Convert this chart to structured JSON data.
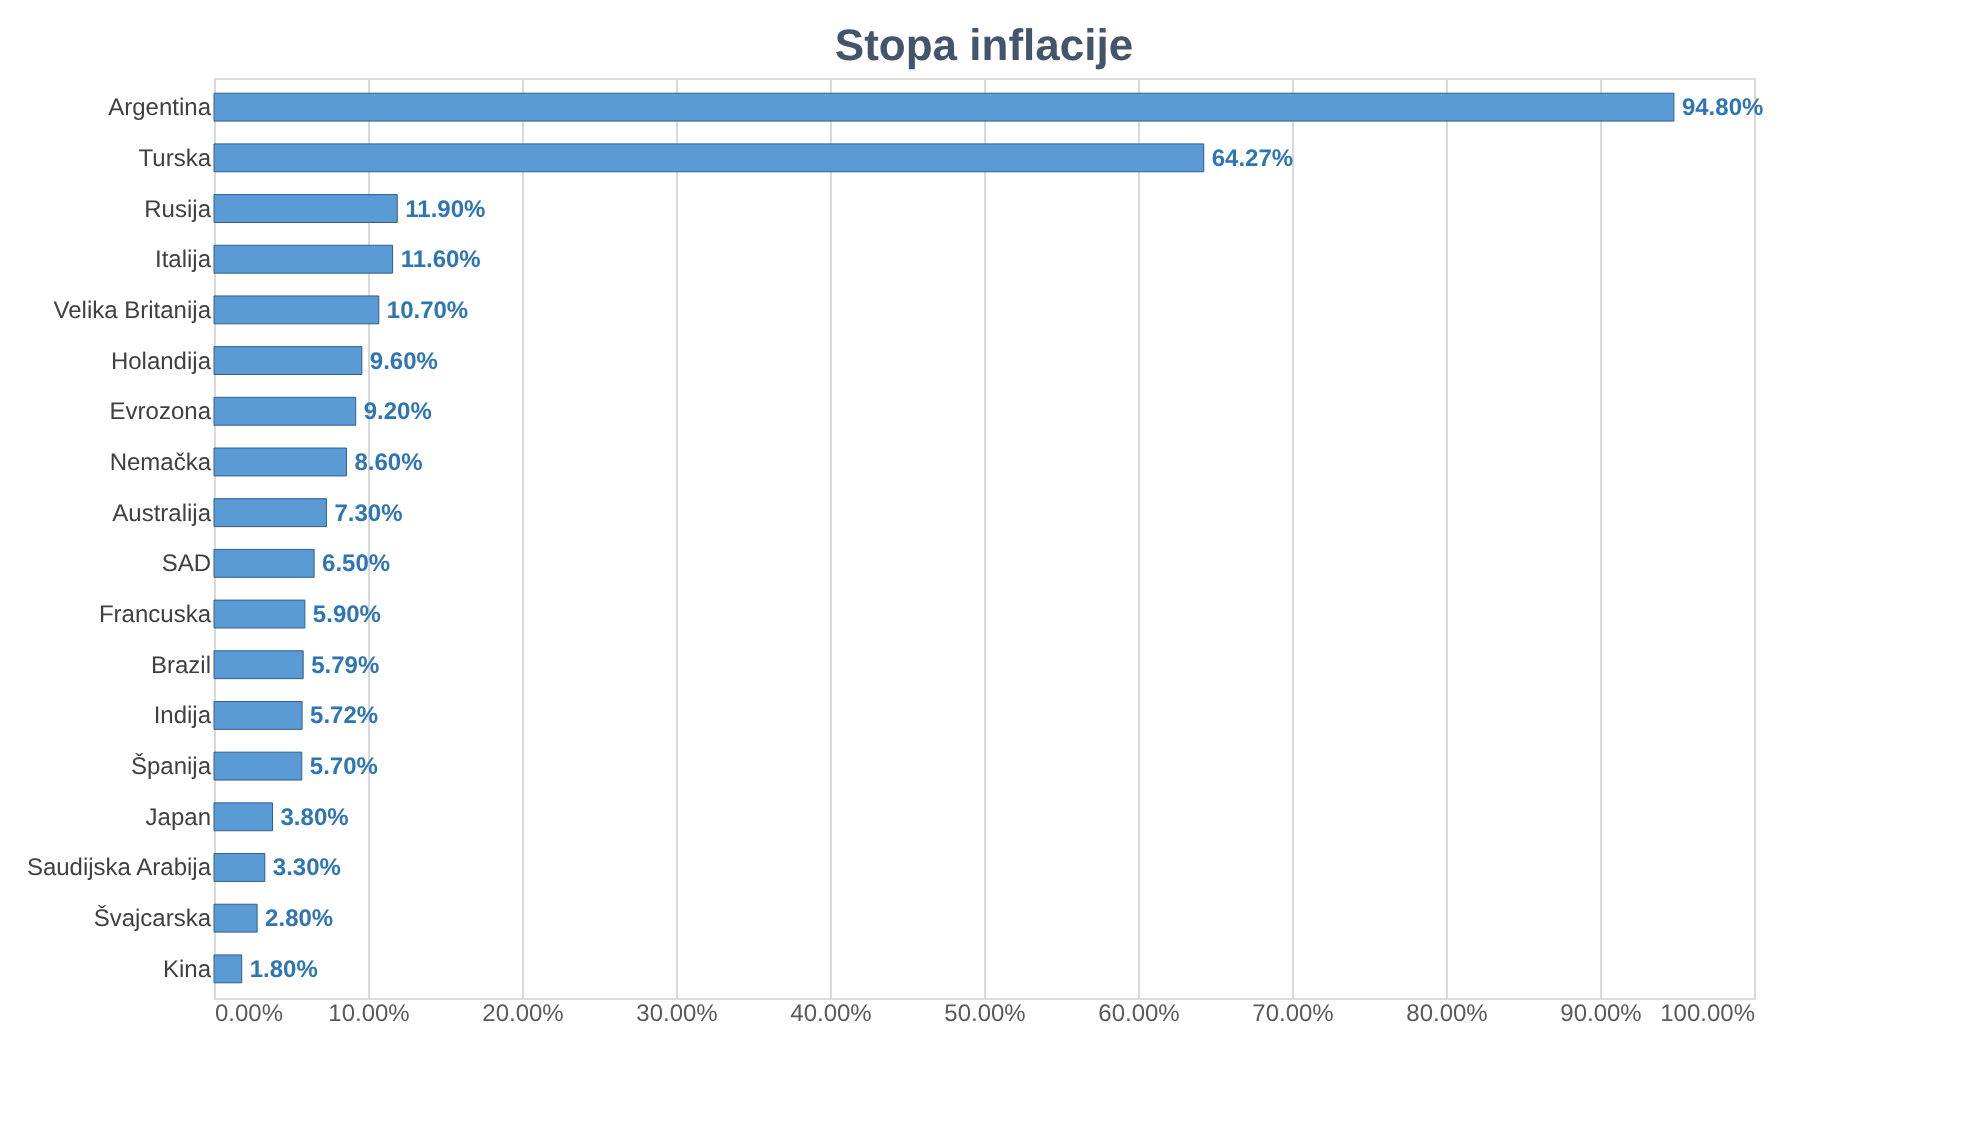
{
  "chart_data": {
    "type": "bar",
    "orientation": "horizontal",
    "title": "Stopa inflacije",
    "categories": [
      "Argentina",
      "Turska",
      "Rusija",
      "Italija",
      "Velika Britanija",
      "Holandija",
      "Evrozona",
      "Nemačka",
      "Australija",
      "SAD",
      "Francuska",
      "Brazil",
      "Indija",
      "Španija",
      "Japan",
      "Saudijska Arabija",
      "Švajcarska",
      "Kina"
    ],
    "values": [
      94.8,
      64.27,
      11.9,
      11.6,
      10.7,
      9.6,
      9.2,
      8.6,
      7.3,
      6.5,
      5.9,
      5.79,
      5.72,
      5.7,
      3.8,
      3.3,
      2.8,
      1.8
    ],
    "value_labels": [
      "94.80%",
      "64.27%",
      "11.90%",
      "11.60%",
      "10.70%",
      "9.60%",
      "9.20%",
      "8.60%",
      "7.30%",
      "6.50%",
      "5.90%",
      "5.79%",
      "5.72%",
      "5.70%",
      "3.80%",
      "3.30%",
      "2.80%",
      "1.80%"
    ],
    "color": "#5b9bd5",
    "xlim": [
      0,
      100
    ],
    "xticks": [
      {
        "value": 0,
        "label": "0.00%"
      },
      {
        "value": 10,
        "label": "10.00%"
      },
      {
        "value": 20,
        "label": "20.00%"
      },
      {
        "value": 30,
        "label": "30.00%"
      },
      {
        "value": 40,
        "label": "40.00%"
      },
      {
        "value": 50,
        "label": "50.00%"
      },
      {
        "value": 60,
        "label": "60.00%"
      },
      {
        "value": 70,
        "label": "70.00%"
      },
      {
        "value": 80,
        "label": "80.00%"
      },
      {
        "value": 90,
        "label": "90.00%"
      },
      {
        "value": 100,
        "label": "100.00%"
      }
    ],
    "grid": "x"
  }
}
